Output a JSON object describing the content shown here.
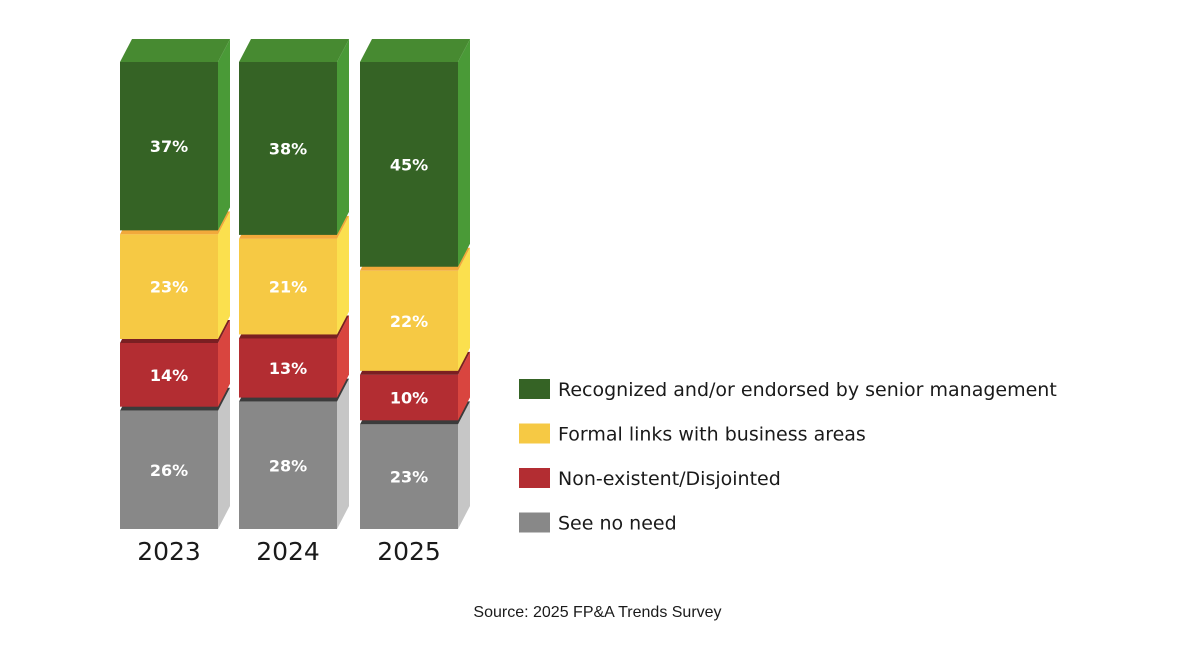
{
  "chart_data": {
    "type": "bar",
    "stacked": true,
    "style": "3d",
    "categories": [
      "2023",
      "2024",
      "2025"
    ],
    "series": [
      {
        "name": "See no need",
        "values": [
          26,
          28,
          23
        ],
        "value_labels": [
          "26%",
          "28%",
          "23%"
        ],
        "colors": {
          "front": "#888888",
          "top": "#3b3b3b",
          "side": "#c6c6c6"
        }
      },
      {
        "name": "Non-existent/Disjointed",
        "values": [
          14,
          13,
          10
        ],
        "value_labels": [
          "14%",
          "13%",
          "10%"
        ],
        "colors": {
          "front": "#b32d32",
          "top": "#7a1f22",
          "side": "#d9453f"
        }
      },
      {
        "name": "Formal links with business areas",
        "values": [
          23,
          21,
          22
        ],
        "value_labels": [
          "23%",
          "21%",
          "22%"
        ],
        "colors": {
          "front": "#f6c944",
          "top": "#f2a93b",
          "side": "#fbe04e"
        }
      },
      {
        "name": "Recognized and/or endorsed by senior management",
        "values": [
          37,
          38,
          45
        ],
        "value_labels": [
          "37%",
          "38%",
          "45%"
        ],
        "colors": {
          "front": "#356325",
          "top": "#478a31",
          "side": "#4a9a37"
        }
      }
    ],
    "legend": {
      "position": "right",
      "order": [
        "Recognized and/or endorsed by senior management",
        "Formal links with business areas",
        "Non-existent/Disjointed",
        "See no need"
      ]
    },
    "source": "Source: 2025 FP&A Trends Survey"
  }
}
